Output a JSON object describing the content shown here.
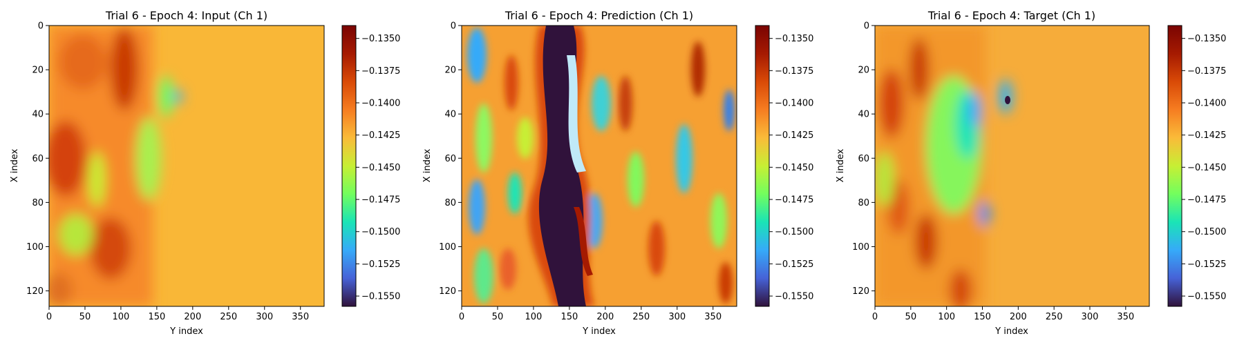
{
  "chart_data": [
    {
      "type": "heatmap",
      "title": "Trial 6 - Epoch 4: Input (Ch 1)",
      "xlabel": "Y index",
      "ylabel": "X index",
      "xlim": [
        0,
        383
      ],
      "ylim": [
        127,
        0
      ],
      "xticks": [
        0,
        50,
        100,
        150,
        200,
        250,
        300,
        350
      ],
      "yticks": [
        0,
        20,
        40,
        60,
        80,
        100,
        120
      ],
      "colormap": "turbo",
      "colorbar": {
        "min": -0.1558,
        "max": -0.134,
        "ticks": [
          "−0.1350",
          "−0.1375",
          "−0.1400",
          "−0.1425",
          "−0.1450",
          "−0.1475",
          "−0.1500",
          "−0.1525",
          "−0.1550"
        ]
      }
    },
    {
      "type": "heatmap",
      "title": "Trial 6 - Epoch 4: Prediction (Ch 1)",
      "xlabel": "Y index",
      "ylabel": "X index",
      "xlim": [
        0,
        383
      ],
      "ylim": [
        127,
        0
      ],
      "xticks": [
        0,
        50,
        100,
        150,
        200,
        250,
        300,
        350
      ],
      "yticks": [
        0,
        20,
        40,
        60,
        80,
        100,
        120
      ],
      "colormap": "turbo",
      "colorbar": {
        "min": -0.1558,
        "max": -0.134,
        "ticks": [
          "−0.1350",
          "−0.1375",
          "−0.1400",
          "−0.1425",
          "−0.1450",
          "−0.1475",
          "−0.1500",
          "−0.1525",
          "−0.1550"
        ]
      }
    },
    {
      "type": "heatmap",
      "title": "Trial 6 - Epoch 4: Target (Ch 1)",
      "xlabel": "Y index",
      "ylabel": "X index",
      "xlim": [
        0,
        383
      ],
      "ylim": [
        127,
        0
      ],
      "xticks": [
        0,
        50,
        100,
        150,
        200,
        250,
        300,
        350
      ],
      "yticks": [
        0,
        20,
        40,
        60,
        80,
        100,
        120
      ],
      "colormap": "turbo",
      "colorbar": {
        "min": -0.1558,
        "max": -0.134,
        "ticks": [
          "−0.1350",
          "−0.1375",
          "−0.1400",
          "−0.1425",
          "−0.1450",
          "−0.1475",
          "−0.1500",
          "−0.1525",
          "−0.1550"
        ]
      }
    }
  ]
}
